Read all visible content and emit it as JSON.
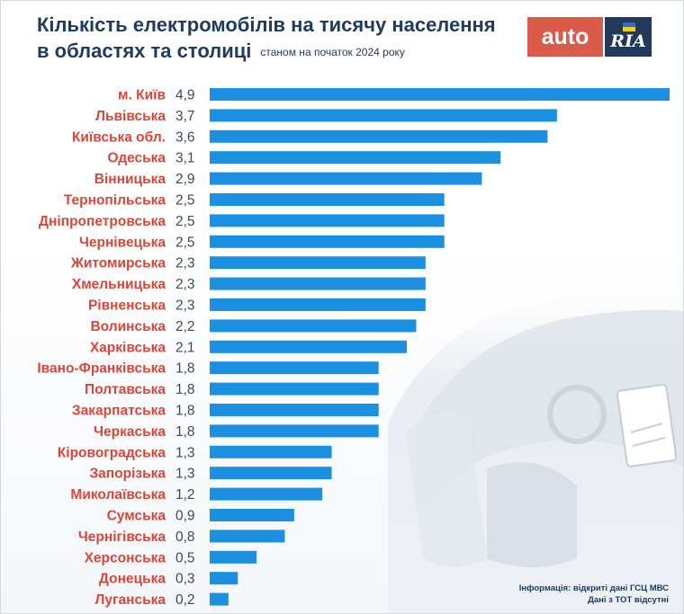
{
  "title_line1": "Кількість електромобілів на тисячу населення",
  "title_line2": "в областях та столиці",
  "subtitle": "станом на початок 2024 року",
  "logo": {
    "part1": "auto",
    "part2": "RIA"
  },
  "source_line1": "Інформація: відкриті дані ГСЦ МВС",
  "source_line2": "Дані з ТОТ відсутні",
  "colors": {
    "bar": "#1b8fe0",
    "label": "#d9473a",
    "value": "#3a4a5c",
    "title": "#1e3c62"
  },
  "chart_data": {
    "type": "bar",
    "orientation": "horizontal",
    "title": "Кількість електромобілів на тисячу населення",
    "categories": [
      "м. Київ",
      "Львівська",
      "Київська обл.",
      "Одеська",
      "Вінницька",
      "Тернопільська",
      "Дніпропетровська",
      "Чернівецька",
      "Житомирська",
      "Хмельницька",
      "Рівненська",
      "Волинська",
      "Харківська",
      "Івано-Франківська",
      "Полтавська",
      "Закарпатська",
      "Черкаська",
      "Кіровоградська",
      "Запорізька",
      "Миколаївська",
      "Сумська",
      "Чернігівська",
      "Херсонська",
      "Донецька",
      "Луганська"
    ],
    "values": [
      4.9,
      3.7,
      3.6,
      3.1,
      2.9,
      2.5,
      2.5,
      2.5,
      2.3,
      2.3,
      2.3,
      2.2,
      2.1,
      1.8,
      1.8,
      1.8,
      1.8,
      1.3,
      1.3,
      1.2,
      0.9,
      0.8,
      0.5,
      0.3,
      0.2
    ],
    "value_labels": [
      "4,9",
      "3,7",
      "3,6",
      "3,1",
      "2,9",
      "2,5",
      "2,5",
      "2,5",
      "2,3",
      "2,3",
      "2,3",
      "2,2",
      "2,1",
      "1,8",
      "1,8",
      "1,8",
      "1,8",
      "1,3",
      "1,3",
      "1,2",
      "0,9",
      "0,8",
      "0,5",
      "0,3",
      "0,2"
    ],
    "xlim": [
      0,
      4.9
    ],
    "grid": false
  }
}
